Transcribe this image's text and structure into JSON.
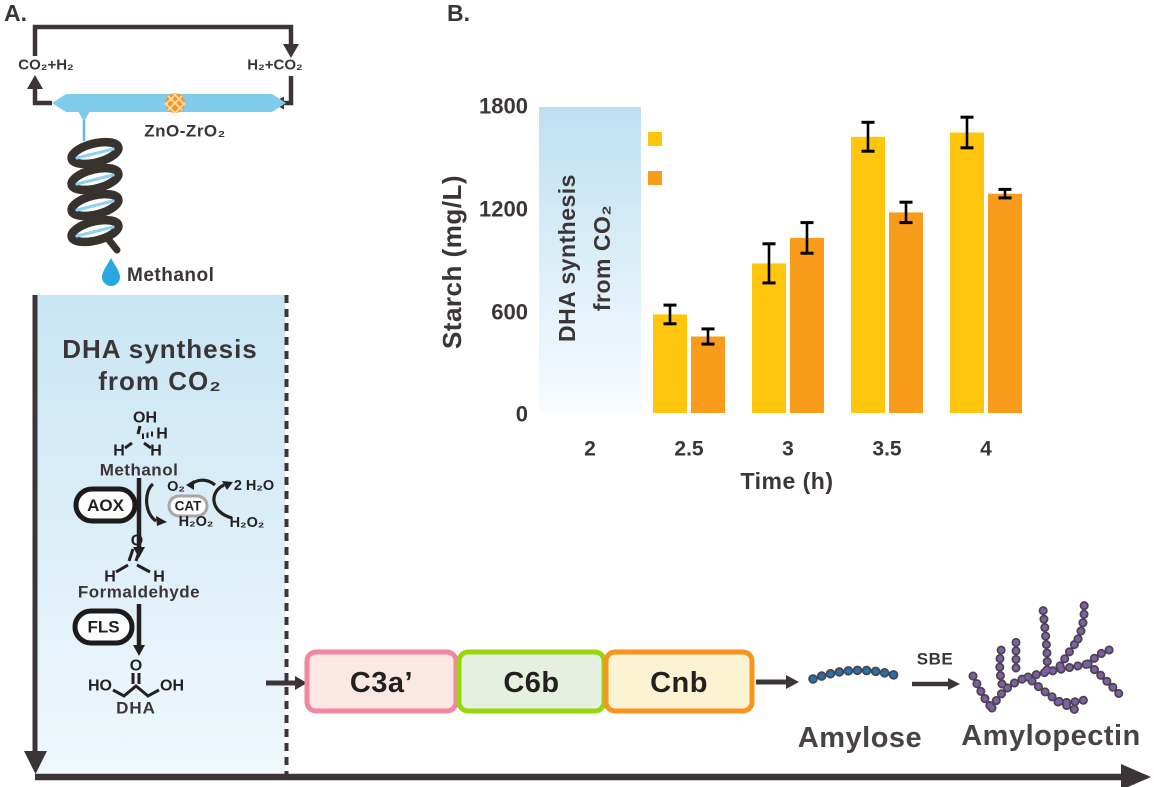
{
  "panel_a": {
    "label": "A.",
    "gas_left": "CO₂+H₂",
    "gas_right": "H₂+CO₂",
    "catalyst": "ZnO-ZrO₂",
    "condensed_drop_label": "Methanol",
    "box_title": {
      "line1": "DHA synthesis",
      "line2": "from CO₂"
    },
    "chem": {
      "oh": "OH",
      "h_a": "H",
      "h_b": "H",
      "h_c": "H",
      "methanol": "Methanol",
      "aox": "AOX",
      "cat": "CAT",
      "o2": "O₂",
      "water": "2 H₂O",
      "h2o2_left": "H₂O₂",
      "h2o2_right": "H₂O₂",
      "o_top": "O",
      "h_left": "H",
      "h_right": "H",
      "formaldehyde": "Formaldehyde",
      "fls": "FLS",
      "o_keto": "O",
      "ho": "HO",
      "oh_end": "OH",
      "dha": "DHA"
    }
  },
  "panel_b": {
    "label": "B."
  },
  "chart_data": {
    "type": "bar",
    "title": "",
    "xlabel": "Time (h)",
    "ylabel": "Starch (mg/L)",
    "categories": [
      2,
      2.5,
      3,
      3.5,
      4
    ],
    "yticks": [
      0,
      600,
      1200,
      1800
    ],
    "ylim": [
      0,
      1800
    ],
    "grid": false,
    "axis_lines": false,
    "annotation_box": {
      "category": 2,
      "line1": "DHA synthesis",
      "line2": "from CO₂",
      "fill_top": "#BFE0F2",
      "fill_bottom": "#F8FCFE"
    },
    "legend": {
      "position": "upper-left-of-plot",
      "entries": [
        {
          "name": "starch-series-yellow",
          "color": "#FFC60D",
          "label": ""
        },
        {
          "name": "starch-series-orange",
          "color": "#F99C1B",
          "label": ""
        }
      ]
    },
    "series": [
      {
        "name": "series-yellow",
        "color": "#FFC60D",
        "values": [
          null,
          580,
          880,
          1625,
          1650
        ],
        "errors": [
          null,
          55,
          115,
          85,
          90
        ]
      },
      {
        "name": "series-orange",
        "color": "#F99C1B",
        "values": [
          null,
          450,
          1030,
          1180,
          1290
        ],
        "errors": [
          null,
          45,
          90,
          60,
          25
        ]
      }
    ]
  },
  "bottom_pathway": {
    "modules": [
      {
        "label": "C3a’",
        "fill": "#FBE8E4",
        "border": "#F287A2"
      },
      {
        "label": "C6b",
        "fill": "#E6F0DE",
        "border": "#97D70F"
      },
      {
        "label": "Cnb",
        "fill": "#FCF3D3",
        "border": "#F7951D"
      }
    ],
    "amylose": "Amylose",
    "sbe": "SBE",
    "amylopectin": "Amylopectin",
    "amylose_color": "#2171B5",
    "amylopectin_color": "#7C5FA8"
  },
  "colors": {
    "text_dark": "#3B3537",
    "chem_ink": "#242021",
    "tube": "#7FCBEA",
    "tube_drip": "#5FB8E5",
    "droplet": "#29A8E0",
    "bead": "#F09A2E",
    "error_bar": "#000000",
    "box_gradient_top": "#C9E5F4",
    "box_gradient_bottom": "#F0F8FC"
  }
}
